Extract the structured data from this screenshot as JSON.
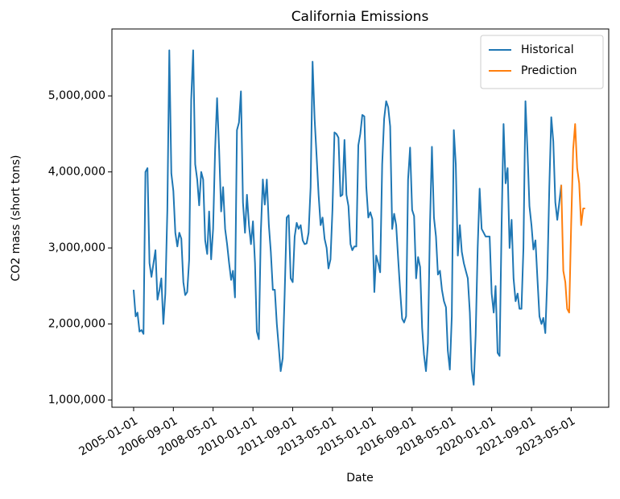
{
  "chart_data": {
    "type": "line",
    "title": "California Emissions",
    "x_label": "Date",
    "y_label": "CO2 mass (short tons)",
    "xlim": [
      "2004-02-04",
      "2024-11-26"
    ],
    "ylim": [
      905000,
      5880000
    ],
    "xticks": [
      "2005-01-01",
      "2006-09-01",
      "2008-05-01",
      "2010-01-01",
      "2011-09-01",
      "2013-05-01",
      "2015-01-01",
      "2016-09-01",
      "2018-05-01",
      "2020-01-01",
      "2021-09-01",
      "2023-05-01"
    ],
    "yticks": [
      {
        "value": 1000000,
        "label": "1,000,000"
      },
      {
        "value": 2000000,
        "label": "2,000,000"
      },
      {
        "value": 3000000,
        "label": "3,000,000"
      },
      {
        "value": 4000000,
        "label": "4,000,000"
      },
      {
        "value": 5000000,
        "label": "5,000,000"
      }
    ],
    "legend": "upper right",
    "grid": false,
    "series": [
      {
        "name": "Historical",
        "color": "#1f77b4",
        "x": [
          "2005-01-01",
          "2005-02-01",
          "2005-03-01",
          "2005-04-01",
          "2005-05-01",
          "2005-06-01",
          "2005-07-01",
          "2005-08-01",
          "2005-09-01",
          "2005-10-01",
          "2005-11-01",
          "2005-12-01",
          "2006-01-01",
          "2006-02-01",
          "2006-03-01",
          "2006-04-01",
          "2006-05-01",
          "2006-06-01",
          "2006-07-01",
          "2006-08-01",
          "2006-09-01",
          "2006-10-01",
          "2006-11-01",
          "2006-12-01",
          "2007-01-01",
          "2007-02-01",
          "2007-03-01",
          "2007-04-01",
          "2007-05-01",
          "2007-06-01",
          "2007-07-01",
          "2007-08-01",
          "2007-09-01",
          "2007-10-01",
          "2007-11-01",
          "2007-12-01",
          "2008-01-01",
          "2008-02-01",
          "2008-03-01",
          "2008-04-01",
          "2008-05-01",
          "2008-06-01",
          "2008-07-01",
          "2008-08-01",
          "2008-09-01",
          "2008-10-01",
          "2008-11-01",
          "2008-12-01",
          "2009-01-01",
          "2009-02-01",
          "2009-03-01",
          "2009-04-01",
          "2009-05-01",
          "2009-06-01",
          "2009-07-01",
          "2009-08-01",
          "2009-09-01",
          "2009-10-01",
          "2009-11-01",
          "2009-12-01",
          "2010-01-01",
          "2010-02-01",
          "2010-03-01",
          "2010-04-01",
          "2010-05-01",
          "2010-06-01",
          "2010-07-01",
          "2010-08-01",
          "2010-09-01",
          "2010-10-01",
          "2010-11-01",
          "2010-12-01",
          "2011-01-01",
          "2011-02-01",
          "2011-03-01",
          "2011-04-01",
          "2011-05-01",
          "2011-06-01",
          "2011-07-01",
          "2011-08-01",
          "2011-09-01",
          "2011-10-01",
          "2011-11-01",
          "2011-12-01",
          "2012-01-01",
          "2012-02-01",
          "2012-03-01",
          "2012-04-01",
          "2012-05-01",
          "2012-06-01",
          "2012-07-01",
          "2012-08-01",
          "2012-09-01",
          "2012-10-01",
          "2012-11-01",
          "2012-12-01",
          "2013-01-01",
          "2013-02-01",
          "2013-03-01",
          "2013-04-01",
          "2013-05-01",
          "2013-06-01",
          "2013-07-01",
          "2013-08-01",
          "2013-09-01",
          "2013-10-01",
          "2013-11-01",
          "2013-12-01",
          "2014-01-01",
          "2014-02-01",
          "2014-03-01",
          "2014-04-01",
          "2014-05-01",
          "2014-06-01",
          "2014-07-01",
          "2014-08-01",
          "2014-09-01",
          "2014-10-01",
          "2014-11-01",
          "2014-12-01",
          "2015-01-01",
          "2015-02-01",
          "2015-03-01",
          "2015-04-01",
          "2015-05-01",
          "2015-06-01",
          "2015-07-01",
          "2015-08-01",
          "2015-09-01",
          "2015-10-01",
          "2015-11-01",
          "2015-12-01",
          "2016-01-01",
          "2016-02-01",
          "2016-03-01",
          "2016-04-01",
          "2016-05-01",
          "2016-06-01",
          "2016-07-01",
          "2016-08-01",
          "2016-09-01",
          "2016-10-01",
          "2016-11-01",
          "2016-12-01",
          "2017-01-01",
          "2017-02-01",
          "2017-03-01",
          "2017-04-01",
          "2017-05-01",
          "2017-06-01",
          "2017-07-01",
          "2017-08-01",
          "2017-09-01",
          "2017-10-01",
          "2017-11-01",
          "2017-12-01",
          "2018-01-01",
          "2018-02-01",
          "2018-03-01",
          "2018-04-01",
          "2018-05-01",
          "2018-06-01",
          "2018-07-01",
          "2018-08-01",
          "2018-09-01",
          "2018-10-01",
          "2018-11-01",
          "2018-12-01",
          "2019-01-01",
          "2019-02-01",
          "2019-03-01",
          "2019-04-01",
          "2019-05-01",
          "2019-06-01",
          "2019-07-01",
          "2019-08-01",
          "2019-09-01",
          "2019-10-01",
          "2019-11-01",
          "2019-12-01",
          "2020-01-01",
          "2020-02-01",
          "2020-03-01",
          "2020-04-01",
          "2020-05-01",
          "2020-06-01",
          "2020-07-01",
          "2020-08-01",
          "2020-09-01",
          "2020-10-01",
          "2020-11-01",
          "2020-12-01",
          "2021-01-01",
          "2021-02-01",
          "2021-03-01",
          "2021-04-01",
          "2021-05-01",
          "2021-06-01",
          "2021-07-01",
          "2021-08-01",
          "2021-09-01",
          "2021-10-01",
          "2021-11-01",
          "2021-12-01",
          "2022-01-01",
          "2022-02-01",
          "2022-03-01",
          "2022-04-01",
          "2022-05-01",
          "2022-06-01",
          "2022-07-01",
          "2022-08-01",
          "2022-09-01",
          "2022-10-01",
          "2022-11-01",
          "2022-12-01"
        ],
        "values": [
          2450000,
          2100000,
          2150000,
          1900000,
          1920000,
          1870000,
          4000000,
          4050000,
          2800000,
          2620000,
          2800000,
          2970000,
          2320000,
          2450000,
          2600000,
          2000000,
          2400000,
          3500000,
          5600000,
          3980000,
          3750000,
          3200000,
          3020000,
          3200000,
          3120000,
          2550000,
          2380000,
          2420000,
          2850000,
          4950000,
          5600000,
          4100000,
          3900000,
          3560000,
          4000000,
          3900000,
          3100000,
          2920000,
          3480000,
          2850000,
          3250000,
          4300000,
          4970000,
          4300000,
          3480000,
          3800000,
          3250000,
          3050000,
          2800000,
          2580000,
          2700000,
          2350000,
          4550000,
          4650000,
          5060000,
          3600000,
          3200000,
          3700000,
          3300000,
          3050000,
          3350000,
          2800000,
          1900000,
          1800000,
          3200000,
          3900000,
          3570000,
          3900000,
          3300000,
          2950000,
          2450000,
          2450000,
          2000000,
          1680000,
          1380000,
          1550000,
          2400000,
          3400000,
          3430000,
          2600000,
          2550000,
          3150000,
          3330000,
          3250000,
          3300000,
          3100000,
          3050000,
          3060000,
          3200000,
          3800000,
          5450000,
          4700000,
          4200000,
          3700000,
          3300000,
          3400000,
          3120000,
          3000000,
          2730000,
          2850000,
          3500000,
          4520000,
          4500000,
          4450000,
          3680000,
          3700000,
          4420000,
          3700000,
          3550000,
          3050000,
          2970000,
          3020000,
          3020000,
          4350000,
          4500000,
          4750000,
          4730000,
          3800000,
          3400000,
          3470000,
          3380000,
          2420000,
          2900000,
          2800000,
          2680000,
          4100000,
          4700000,
          4930000,
          4850000,
          4600000,
          3250000,
          3450000,
          3300000,
          2850000,
          2450000,
          2070000,
          2020000,
          2100000,
          3900000,
          4320000,
          3500000,
          3420000,
          2600000,
          2880000,
          2750000,
          1950000,
          1600000,
          1380000,
          1750000,
          3300000,
          4330000,
          3400000,
          3150000,
          2650000,
          2700000,
          2450000,
          2300000,
          2220000,
          1650000,
          1400000,
          2100000,
          4550000,
          4100000,
          2900000,
          3300000,
          2950000,
          2800000,
          2700000,
          2600000,
          2150000,
          1400000,
          1200000,
          1850000,
          3000000,
          3780000,
          3250000,
          3200000,
          3150000,
          3150000,
          3150000,
          2400000,
          2150000,
          2500000,
          1620000,
          1580000,
          3300000,
          4630000,
          3850000,
          4050000,
          3000000,
          3370000,
          2600000,
          2300000,
          2400000,
          2200000,
          2200000,
          3000000,
          4930000,
          4300000,
          3550000,
          3300000,
          2980000,
          3100000,
          2600000,
          2100000,
          2000000,
          2080000,
          1880000,
          2600000,
          3800000,
          4720000,
          4400000,
          3600000,
          3370000,
          3600000,
          3830000
        ]
      },
      {
        "name": "Prediction",
        "color": "#ff7f0e",
        "x": [
          "2022-12-01",
          "2023-01-01",
          "2023-02-01",
          "2023-03-01",
          "2023-04-01",
          "2023-05-01",
          "2023-06-01",
          "2023-07-01",
          "2023-08-01",
          "2023-09-01",
          "2023-10-01",
          "2023-11-01",
          "2023-12-01"
        ],
        "values": [
          3830000,
          2700000,
          2550000,
          2200000,
          2150000,
          3300000,
          4300000,
          4630000,
          4050000,
          3850000,
          3300000,
          3520000,
          3520000
        ]
      }
    ]
  }
}
